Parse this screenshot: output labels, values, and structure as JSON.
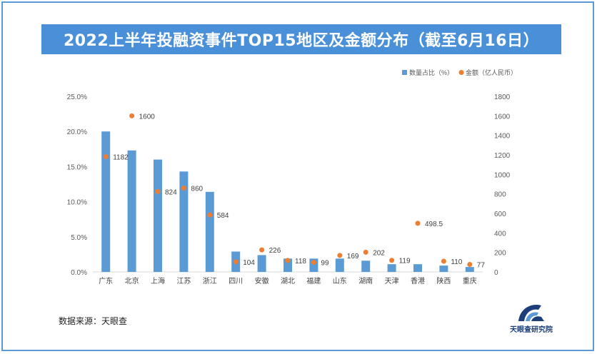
{
  "page": {
    "title": "2022上半年投融资事件TOP15地区及金额分布（截至6月16日）",
    "source": "数据来源：天眼查",
    "logo_text": "天眼查研究院"
  },
  "colors": {
    "frame": "#5b9bd5",
    "title_bg": "#4a90d9",
    "bar": "#5b9bd5",
    "dot": "#ed7d31",
    "logo": "#1c3f7a"
  },
  "chart_data": {
    "type": "bar",
    "categories": [
      "广东",
      "北京",
      "上海",
      "江苏",
      "浙江",
      "四川",
      "安徽",
      "湖北",
      "福建",
      "山东",
      "湖南",
      "天津",
      "香港",
      "陕西",
      "重庆"
    ],
    "series": [
      {
        "name": "数量占比（%）",
        "type": "bar",
        "axis": "left",
        "values": [
          20.0,
          17.3,
          16.0,
          14.3,
          11.4,
          2.9,
          2.4,
          1.9,
          1.9,
          1.9,
          1.6,
          1.1,
          1.1,
          0.9,
          0.7
        ]
      },
      {
        "name": "金额（亿人民币）",
        "type": "scatter",
        "axis": "right",
        "values": [
          1182,
          1600,
          824,
          860,
          584,
          104,
          226,
          118,
          99,
          169,
          202,
          119,
          498.5,
          110,
          77
        ],
        "labels": [
          "1182",
          "1600",
          "824",
          "860",
          "584",
          "104",
          "226",
          "118",
          "99",
          "169",
          "202",
          "119",
          "498.5",
          "110",
          "77"
        ]
      }
    ],
    "y_left": {
      "min": 0,
      "max": 25,
      "ticks": [
        0,
        5,
        10,
        15,
        20,
        25
      ],
      "tick_labels": [
        "0.0%",
        "5.0%",
        "10.0%",
        "15.0%",
        "20.0%",
        "25.0%"
      ]
    },
    "y_right": {
      "min": 0,
      "max": 1800,
      "ticks": [
        0,
        200,
        400,
        600,
        800,
        1000,
        1200,
        1400,
        1600,
        1800
      ],
      "tick_labels": [
        "0",
        "200",
        "400",
        "600",
        "800",
        "1000",
        "1200",
        "1400",
        "1600",
        "1800"
      ]
    },
    "legend_position": "top-right",
    "grid": false
  }
}
